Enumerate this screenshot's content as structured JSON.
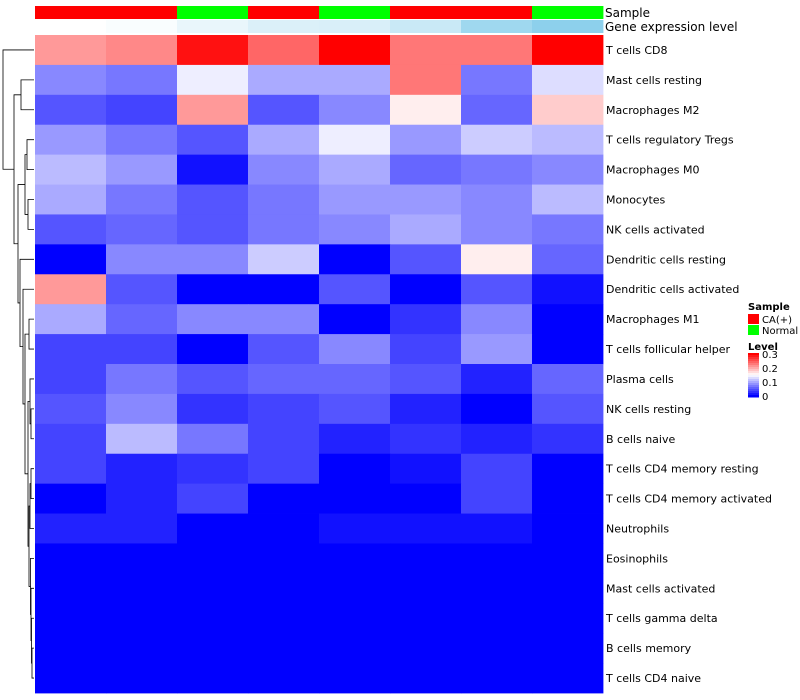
{
  "chart_data": {
    "type": "heatmap",
    "annotation_labels": [
      "Sample",
      "Gene expression level"
    ],
    "sample_annotation": [
      "CA(+)",
      "CA(+)",
      "Normal",
      "CA(+)",
      "Normal",
      "CA(+)",
      "CA(+)",
      "Normal"
    ],
    "gene_expression_annotation": [
      0.0,
      0.05,
      0.18,
      0.3,
      0.32,
      0.45,
      0.8,
      0.95
    ],
    "rows": [
      "T cells CD8",
      "Mast cells resting",
      "Macrophages M2",
      "T cells regulatory  Tregs",
      "Macrophages M0",
      "Monocytes",
      "NK cells activated",
      "Dendritic cells resting",
      "Dendritic cells activated",
      "Macrophages M1",
      "T cells follicular helper",
      "Plasma cells",
      "NK cells resting",
      "B cells naive",
      "T cells CD4 memory resting",
      "T cells CD4 memory activated",
      "Neutrophils",
      "Eosinophils",
      "Mast cells activated",
      "T cells gamma delta",
      "B cells memory",
      "T cells CD4 naive"
    ],
    "values": [
      [
        0.21,
        0.22,
        0.29,
        0.24,
        0.3,
        0.23,
        0.23,
        0.3
      ],
      [
        0.08,
        0.07,
        0.14,
        0.1,
        0.1,
        0.23,
        0.07,
        0.13
      ],
      [
        0.05,
        0.04,
        0.21,
        0.05,
        0.08,
        0.16,
        0.06,
        0.18
      ],
      [
        0.09,
        0.07,
        0.05,
        0.1,
        0.14,
        0.09,
        0.12,
        0.11
      ],
      [
        0.11,
        0.09,
        0.01,
        0.08,
        0.1,
        0.06,
        0.07,
        0.08
      ],
      [
        0.1,
        0.07,
        0.05,
        0.07,
        0.09,
        0.09,
        0.08,
        0.11
      ],
      [
        0.05,
        0.06,
        0.05,
        0.07,
        0.08,
        0.1,
        0.08,
        0.07
      ],
      [
        0.0,
        0.08,
        0.08,
        0.12,
        0.0,
        0.05,
        0.16,
        0.06
      ],
      [
        0.21,
        0.05,
        0.0,
        0.0,
        0.05,
        0.0,
        0.05,
        0.01
      ],
      [
        0.1,
        0.06,
        0.08,
        0.08,
        0.0,
        0.03,
        0.08,
        0.0
      ],
      [
        0.04,
        0.04,
        0.0,
        0.05,
        0.08,
        0.04,
        0.09,
        0.0
      ],
      [
        0.04,
        0.07,
        0.05,
        0.06,
        0.06,
        0.05,
        0.02,
        0.06
      ],
      [
        0.05,
        0.08,
        0.03,
        0.04,
        0.05,
        0.02,
        0.0,
        0.05
      ],
      [
        0.04,
        0.11,
        0.07,
        0.04,
        0.02,
        0.03,
        0.02,
        0.03
      ],
      [
        0.04,
        0.02,
        0.03,
        0.04,
        0.0,
        0.01,
        0.04,
        0.0
      ],
      [
        0.0,
        0.02,
        0.04,
        0.0,
        0.0,
        0.0,
        0.04,
        0.0
      ],
      [
        0.02,
        0.02,
        0.0,
        0.0,
        0.01,
        0.01,
        0.01,
        0.0
      ],
      [
        0.0,
        0.0,
        0.0,
        0.0,
        0.0,
        0.0,
        0.0,
        0.0
      ],
      [
        0.0,
        0.0,
        0.0,
        0.0,
        0.0,
        0.0,
        0.0,
        0.0
      ],
      [
        0.0,
        0.0,
        0.0,
        0.0,
        0.0,
        0.0,
        0.0,
        0.0
      ],
      [
        0.0,
        0.0,
        0.0,
        0.0,
        0.0,
        0.0,
        0.0,
        0.0
      ],
      [
        0.0,
        0.0,
        0.0,
        0.0,
        0.0,
        0.0,
        0.0,
        0.0
      ]
    ],
    "color_scale": {
      "low": "#0000FF",
      "mid": "#FFFFFF",
      "high": "#FF0000",
      "range": [
        0,
        0.3
      ],
      "ticks": [
        "0",
        "0.1",
        "0.2",
        "0.3"
      ]
    },
    "legend": {
      "sample_title": "Sample",
      "sample_items": [
        {
          "label": "CA(+)",
          "color": "#FF0000"
        },
        {
          "label": "Normal",
          "color": "#00FF00"
        }
      ],
      "level_title": "Level",
      "placement": "right"
    },
    "gene_expression_colors": {
      "low": "#FFFFFF",
      "high": "#87CEEB"
    },
    "dendrogram": "left"
  }
}
